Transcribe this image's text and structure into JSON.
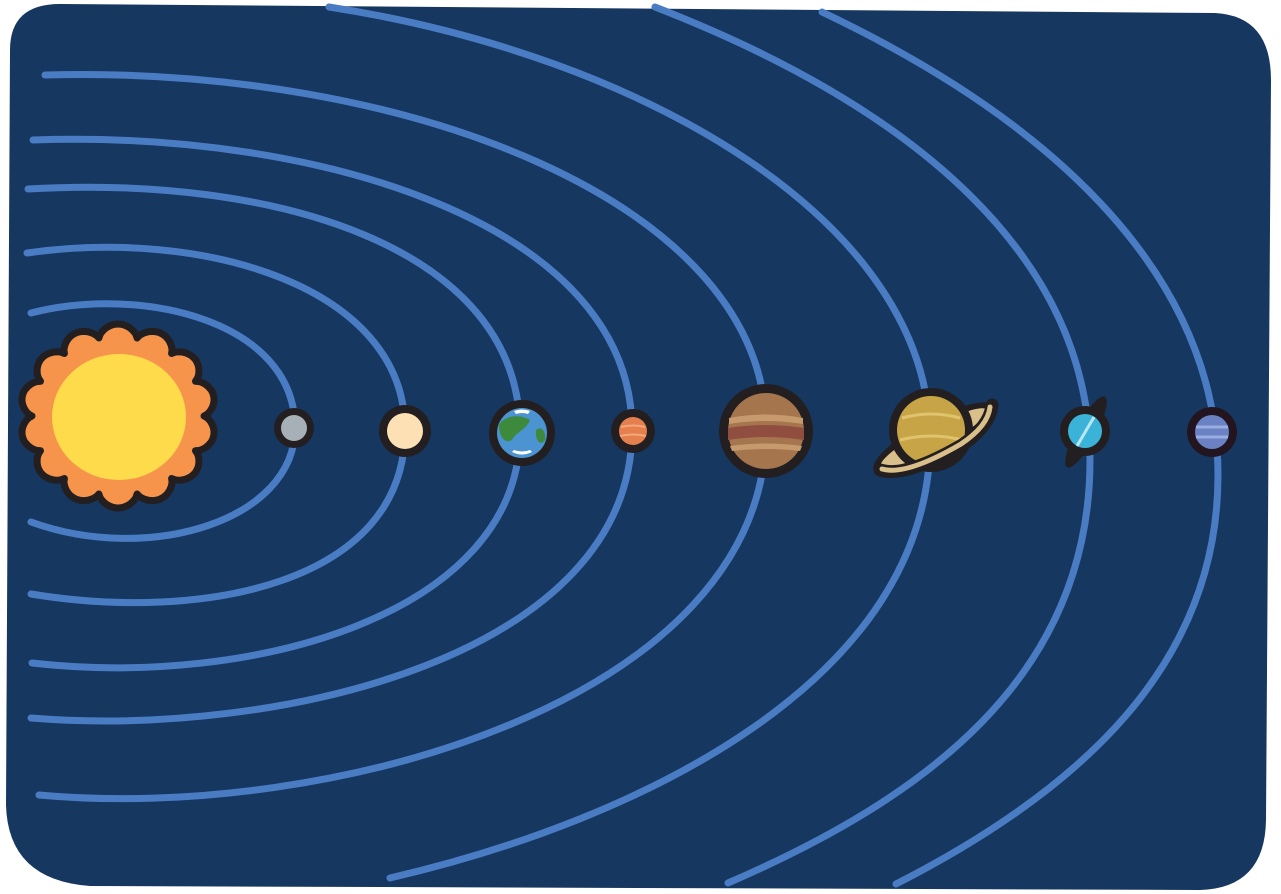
{
  "colors": {
    "space": "#163760",
    "orbit": "#4a7cc4",
    "outline": "#231f20",
    "sun_corona": "#f7944b",
    "sun_core": "#fedb4b",
    "mercury": "#a7b0b6",
    "venus": "#fde0b4",
    "earth_ocean": "#4b93d1",
    "earth_land": "#3d8a3d",
    "mars": "#e57f4e",
    "jupiter": "#a5754e",
    "saturn": "#c7a446",
    "saturn_ring": "#d9c08a",
    "uranus": "#3bb3d8",
    "neptune": "#6a82c4"
  },
  "bodies": [
    {
      "name": "sun",
      "icon": "sun-icon"
    },
    {
      "name": "mercury",
      "icon": "mercury-icon"
    },
    {
      "name": "venus",
      "icon": "venus-icon"
    },
    {
      "name": "earth",
      "icon": "earth-icon"
    },
    {
      "name": "mars",
      "icon": "mars-icon"
    },
    {
      "name": "jupiter",
      "icon": "jupiter-icon"
    },
    {
      "name": "saturn",
      "icon": "saturn-icon"
    },
    {
      "name": "uranus",
      "icon": "uranus-icon"
    },
    {
      "name": "neptune",
      "icon": "neptune-icon"
    }
  ]
}
